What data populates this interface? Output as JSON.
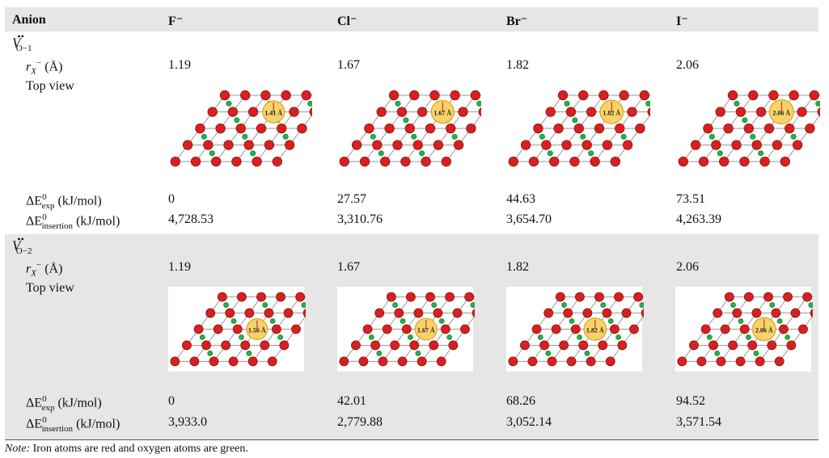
{
  "header": {
    "anion": "Anion",
    "columns": [
      "F⁻",
      "Cl⁻",
      "Br⁻",
      "I⁻"
    ]
  },
  "sections": [
    {
      "label_v": "V",
      "label_sup": "••",
      "label_sub": "O−1",
      "radius_label": "(Å)",
      "radius_symbol": "r",
      "radius_sub": "X",
      "radius_sup": "−",
      "radii": [
        "1.19",
        "1.67",
        "1.82",
        "2.06"
      ],
      "topview_label": "Top view",
      "image_labels": [
        "1.41 Å",
        "1.67 Å",
        "1.82 Å",
        "2.06 Å"
      ],
      "exp_label": "(kJ/mol)",
      "exp_values": [
        "0",
        "27.57",
        "44.63",
        "73.51"
      ],
      "ins_label": "(kJ/mol)",
      "ins_values": [
        "4,728.53",
        "3,310.76",
        "3,654.70",
        "4,263.39"
      ]
    },
    {
      "label_v": "V",
      "label_sup": "••",
      "label_sub": "O−2",
      "radius_label": "(Å)",
      "radius_symbol": "r",
      "radius_sub": "X",
      "radius_sup": "−",
      "radii": [
        "1.19",
        "1.67",
        "1.82",
        "2.06"
      ],
      "topview_label": "Top view",
      "image_labels": [
        "1.56 Å",
        "1.67 Å",
        "1.82 Å",
        "2.06 Å"
      ],
      "exp_label": "(kJ/mol)",
      "exp_values": [
        "0",
        "42.01",
        "68.26",
        "94.52"
      ],
      "ins_label": "(kJ/mol)",
      "ins_values": [
        "3,933.0",
        "2,779.88",
        "3,052.14",
        "3,571.54"
      ]
    }
  ],
  "energy_symbol": {
    "delta": "ΔE",
    "sup": "0",
    "exp_sub": "exp",
    "ins_sub": "insertion"
  },
  "note": {
    "prefix": "Note:",
    "text": " Iron atoms are red and oxygen atoms are green."
  },
  "colors": {
    "iron": "#d92020",
    "oxygen": "#22b14c",
    "vacancy_fill": "#f7d36a",
    "vacancy_stroke": "#d9a520",
    "header_bg": "#e6e6e6"
  }
}
